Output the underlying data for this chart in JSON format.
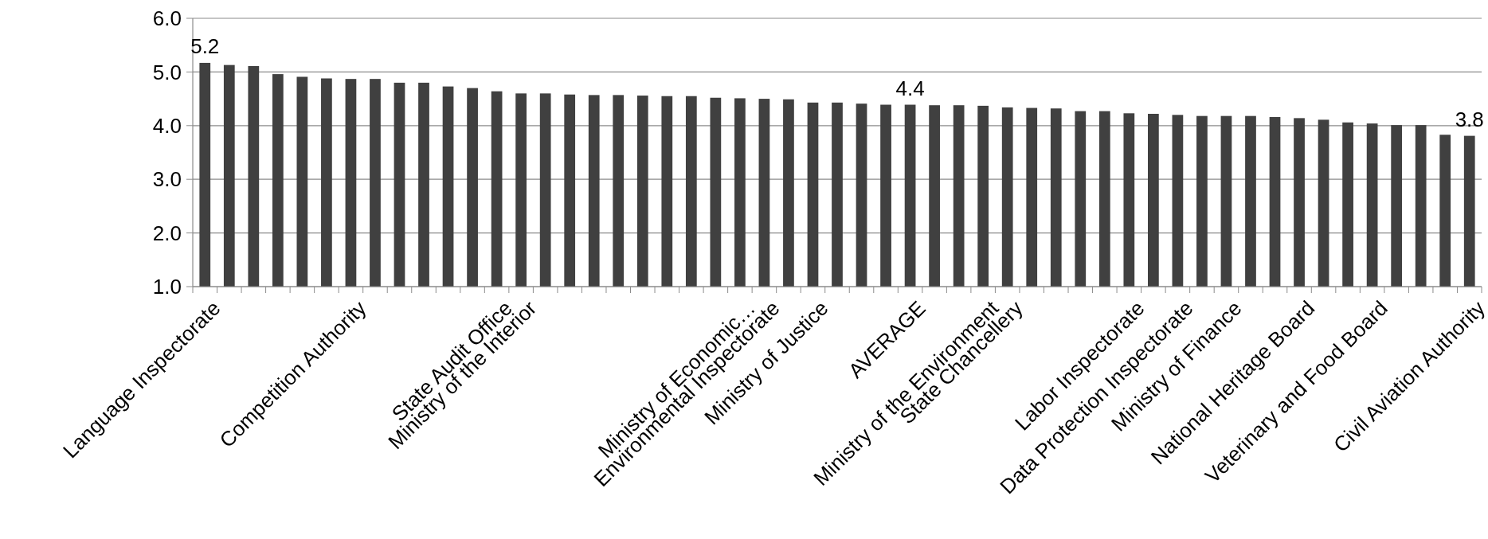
{
  "chart_data": {
    "type": "bar",
    "categories": [
      "Language Inspectorate",
      null,
      null,
      null,
      null,
      null,
      "Competition Authority",
      null,
      null,
      null,
      null,
      null,
      "State Audit Office",
      "Ministry of the Interior",
      null,
      null,
      null,
      null,
      null,
      null,
      null,
      null,
      "Ministry of Economic…",
      "Environmental Inspectorate",
      null,
      "Ministry of Justice",
      null,
      null,
      null,
      "AVERAGE",
      null,
      null,
      "Ministry of the Environment",
      "State Chancellery",
      null,
      null,
      null,
      null,
      "Labor Inspectorate",
      null,
      "Data Protection Inspectorate",
      null,
      "Ministry of Finance",
      null,
      null,
      "National Heritage Board",
      null,
      null,
      "Veterinary and Food Board",
      null,
      null,
      null,
      "Civil Aviation Authority"
    ],
    "values": [
      5.17,
      5.13,
      5.11,
      4.96,
      4.91,
      4.88,
      4.87,
      4.87,
      4.8,
      4.8,
      4.73,
      4.7,
      4.64,
      4.6,
      4.6,
      4.58,
      4.57,
      4.57,
      4.56,
      4.55,
      4.55,
      4.52,
      4.51,
      4.5,
      4.49,
      4.43,
      4.43,
      4.41,
      4.39,
      4.39,
      4.38,
      4.38,
      4.37,
      4.34,
      4.33,
      4.32,
      4.27,
      4.27,
      4.23,
      4.22,
      4.2,
      4.18,
      4.18,
      4.18,
      4.16,
      4.14,
      4.11,
      4.06,
      4.04,
      4.01,
      4.01,
      3.83,
      3.81
    ],
    "value_labels": [
      "5.2",
      null,
      null,
      null,
      null,
      null,
      null,
      null,
      null,
      null,
      null,
      null,
      null,
      null,
      null,
      null,
      null,
      null,
      null,
      null,
      null,
      null,
      null,
      null,
      null,
      null,
      null,
      null,
      null,
      "4.4",
      null,
      null,
      null,
      null,
      null,
      null,
      null,
      null,
      null,
      null,
      null,
      null,
      null,
      null,
      null,
      null,
      null,
      null,
      null,
      null,
      null,
      null,
      "3.8"
    ],
    "color": "#404040",
    "ylim": [
      1,
      6
    ],
    "yticks": [
      {
        "value": 1,
        "label": "1.0"
      },
      {
        "value": 2,
        "label": "2.0"
      },
      {
        "value": 3,
        "label": "3.0"
      },
      {
        "value": 4,
        "label": "4.0"
      },
      {
        "value": 5,
        "label": "5.0"
      },
      {
        "value": 6,
        "label": "6.0"
      }
    ],
    "grid": "y"
  }
}
